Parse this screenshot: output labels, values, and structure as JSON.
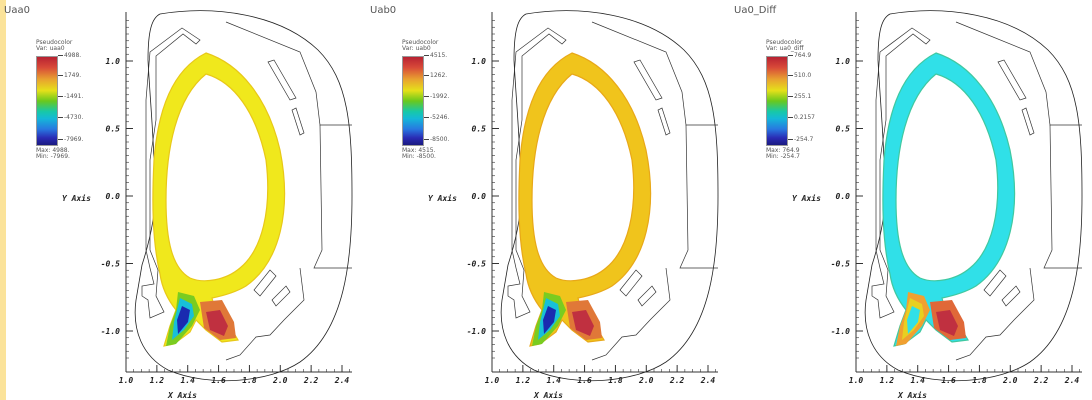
{
  "panels": [
    {
      "title": "Uaa0",
      "legend": {
        "header": "Pseudocolor",
        "var": "Var: uaa0",
        "ticks": [
          "4988.",
          "1749.",
          "-1491.",
          "-4730.",
          "-7969."
        ],
        "max": "Max: 4988.",
        "min": "Min: -7969."
      },
      "colors": {
        "band": "#f0e81c",
        "band_edge": "#e8c818",
        "lower_left_a": "#1a2ab0",
        "lower_left_b": "#18c0d8",
        "lower_left_c": "#7acc20",
        "lower_right_a": "#c03040",
        "lower_right_b": "#e07838"
      }
    },
    {
      "title": "Uab0",
      "legend": {
        "header": "Pseudocolor",
        "var": "Var: uab0",
        "ticks": [
          "4515.",
          "1262.",
          "-1992.",
          "-5246.",
          "-8500."
        ],
        "max": "Max: 4515.",
        "min": "Min: -8500."
      },
      "colors": {
        "band": "#f0c41c",
        "band_edge": "#e8a818",
        "lower_left_a": "#1a2ab0",
        "lower_left_b": "#18c0d8",
        "lower_left_c": "#7acc20",
        "lower_right_a": "#c03040",
        "lower_right_b": "#e07838"
      }
    },
    {
      "title": "Ua0_Diff",
      "legend": {
        "header": "Pseudocolor",
        "var": "Var: ua0_diff",
        "ticks": [
          "764.9",
          "510.0",
          "255.1",
          "0.2157",
          "-254.7"
        ],
        "max": "Max: 764.9",
        "min": "Min: -254.7"
      },
      "colors": {
        "band": "#30e0e8",
        "band_edge": "#40c8a0",
        "lower_left_a": "#30e0e8",
        "lower_left_b": "#e8d020",
        "lower_left_c": "#f0a030",
        "lower_right_a": "#c03040",
        "lower_right_b": "#e06838"
      }
    }
  ],
  "axes": {
    "ylabel": "Y Axis",
    "xlabel": "X Axis",
    "yticks": [
      "1.0",
      "0.5",
      "0.0",
      "-0.5",
      "-1.0"
    ],
    "xticks": [
      "1.0",
      "1.2",
      "1.4",
      "1.6",
      "1.8",
      "2.0",
      "2.2",
      "2.4"
    ]
  },
  "chart_data": [
    {
      "type": "heatmap",
      "title": "Uaa0",
      "var": "uaa0",
      "colorbar_max": 4988,
      "colorbar_min": -7969,
      "xlabel": "X Axis",
      "ylabel": "Y Axis",
      "xlim": [
        1.0,
        2.5
      ],
      "ylim": [
        -1.25,
        1.3
      ]
    },
    {
      "type": "heatmap",
      "title": "Uab0",
      "var": "uab0",
      "colorbar_max": 4515,
      "colorbar_min": -8500,
      "xlabel": "X Axis",
      "ylabel": "Y Axis",
      "xlim": [
        1.0,
        2.5
      ],
      "ylim": [
        -1.25,
        1.3
      ]
    },
    {
      "type": "heatmap",
      "title": "Ua0_Diff",
      "var": "ua0_diff",
      "colorbar_max": 764.9,
      "colorbar_min": -254.7,
      "xlabel": "X Axis",
      "ylabel": "Y Axis",
      "xlim": [
        1.0,
        2.5
      ],
      "ylim": [
        -1.25,
        1.3
      ]
    }
  ]
}
